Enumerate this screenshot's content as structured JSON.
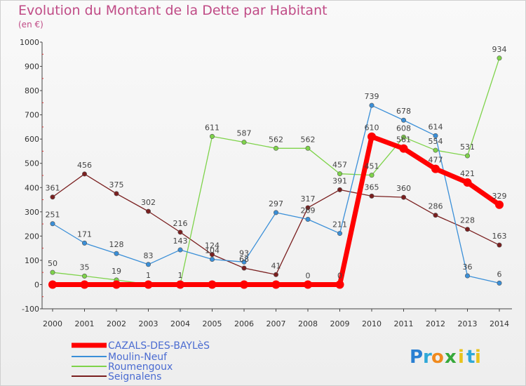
{
  "title": "Evolution du Montant de la Dette par Habitant",
  "subtitle": "(en €)",
  "logo": {
    "text": [
      "P",
      "r",
      "o",
      "x",
      "i",
      "t",
      "i"
    ],
    "colors": [
      "#2a7fd2",
      "#2fa8d8",
      "#f08a1e",
      "#36a83a",
      "#e8c31c",
      "#2fa8d8",
      "#e8c31c"
    ]
  },
  "chart_data": {
    "type": "line",
    "categories": [
      "2000",
      "2001",
      "2002",
      "2003",
      "2004",
      "2005",
      "2006",
      "2007",
      "2008",
      "2009",
      "2010",
      "2011",
      "2012",
      "2013",
      "2014"
    ],
    "ylim": [
      -100,
      1000
    ],
    "yticks": [
      "-100",
      "0",
      "100",
      "200",
      "300",
      "400",
      "500",
      "600",
      "700",
      "800",
      "900",
      "1000"
    ],
    "grid": false,
    "legend_position": "bottom-left",
    "series": [
      {
        "name": "CAZALS-DES-BAYLèS",
        "color": "#ff0000",
        "values": [
          0,
          0,
          0,
          0,
          0,
          0,
          0,
          0,
          0,
          0,
          610,
          561,
          477,
          421,
          329
        ],
        "labels": [
          "",
          "",
          "",
          "",
          "",
          "",
          "",
          "",
          "0",
          "0",
          "610",
          "561",
          "477",
          "421",
          "329"
        ]
      },
      {
        "name": "Moulin-Neuf",
        "color": "#3a8fd8",
        "values": [
          251,
          171,
          128,
          83,
          143,
          104,
          93,
          297,
          269,
          211,
          739,
          678,
          614,
          36,
          6
        ],
        "labels": [
          "251",
          "171",
          "128",
          "83",
          "143",
          "104",
          "93",
          "297",
          "269",
          "211",
          "739",
          "678",
          "614",
          "36",
          "6"
        ]
      },
      {
        "name": "Roumengoux",
        "color": "#7ed34a",
        "values": [
          50,
          35,
          19,
          1,
          1,
          611,
          587,
          562,
          562,
          457,
          451,
          608,
          554,
          531,
          934
        ],
        "labels": [
          "50",
          "35",
          "19",
          "1",
          "1",
          "611",
          "587",
          "562",
          "562",
          "457",
          "451",
          "608",
          "554",
          "531",
          "934"
        ]
      },
      {
        "name": "Seignalens",
        "color": "#7a1f1f",
        "values": [
          361,
          456,
          375,
          302,
          216,
          124,
          68,
          41,
          317,
          391,
          365,
          360,
          286,
          228,
          163
        ],
        "labels": [
          "361",
          "456",
          "375",
          "302",
          "216",
          "124",
          "68",
          "41",
          "317",
          "391",
          "365",
          "360",
          "286",
          "228",
          "163"
        ]
      }
    ]
  }
}
